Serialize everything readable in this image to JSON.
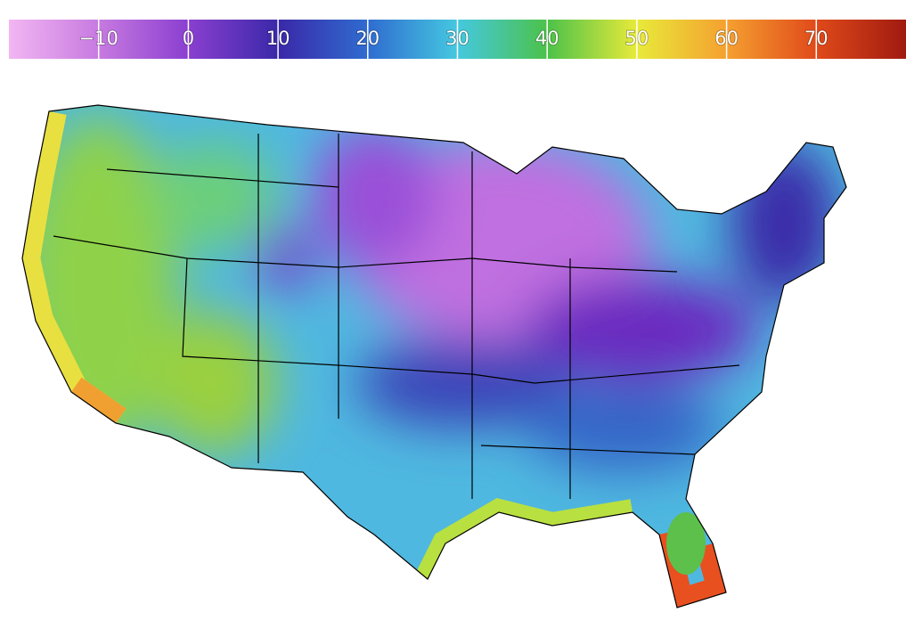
{
  "colorbar": {
    "range": [
      -20,
      80
    ],
    "ticks": [
      {
        "value": -10,
        "label": "−10"
      },
      0,
      10,
      20,
      30,
      40,
      50,
      60,
      70
    ],
    "colors": [
      "#f2b6f2",
      "#c77ae0",
      "#8a3fd0",
      "#3a28a8",
      "#2f6cd0",
      "#45c8e0",
      "#4cc24a",
      "#e8ea3a",
      "#f5a030",
      "#e04a1a",
      "#a01a10"
    ]
  }
}
